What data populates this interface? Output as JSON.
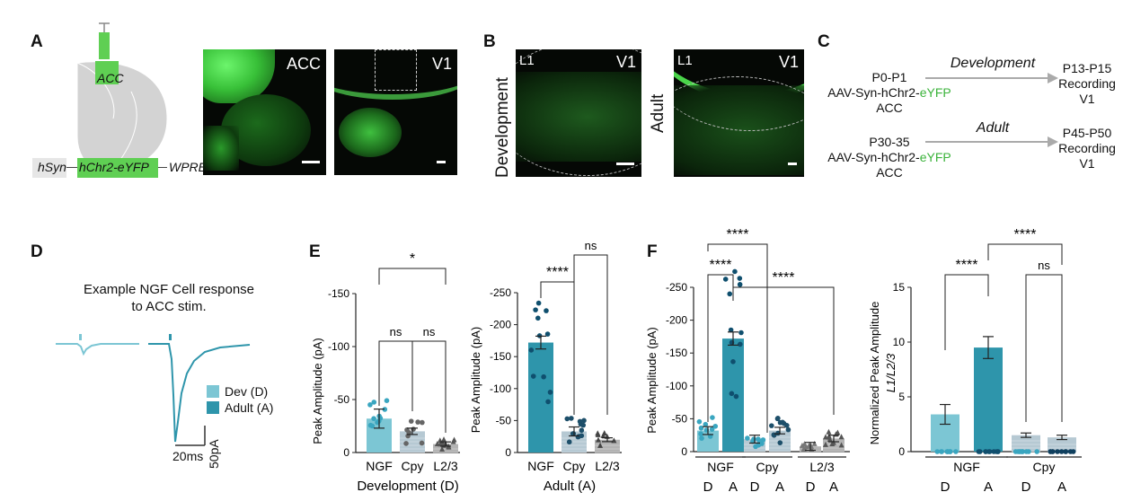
{
  "panels": {
    "A": {
      "letter": "A",
      "brain_label": "ACC",
      "construct": [
        "hSyn",
        "hChr2-eYFP",
        "WPRE"
      ],
      "images": [
        "ACC",
        "V1"
      ]
    },
    "B": {
      "letter": "B",
      "images": [
        {
          "side": "Development",
          "region": "V1",
          "layer": "L1"
        },
        {
          "side": "Adult",
          "region": "V1",
          "layer": "L1"
        }
      ]
    },
    "C": {
      "letter": "C",
      "rows": [
        {
          "condition": "Development",
          "injection_age": "P0-P1",
          "virus_prefix": "AAV-Syn-hChr2-",
          "virus_suffix": "eYFP",
          "site": "ACC",
          "record_age": "P13-P15",
          "record_label": "Recording",
          "record_site": "V1"
        },
        {
          "condition": "Adult",
          "injection_age": "P30-35",
          "virus_prefix": "AAV-Syn-hChr2-",
          "virus_suffix": "eYFP",
          "site": "ACC",
          "record_age": "P45-P50",
          "record_label": "Recording",
          "record_site": "V1"
        }
      ]
    },
    "D": {
      "letter": "D",
      "title_line1": "Example NGF Cell response",
      "title_line2": "to ACC stim.",
      "legend": [
        {
          "label": "Dev (D)",
          "color": "#7cc6d4"
        },
        {
          "label": "Adult (A)",
          "color": "#2e95ab"
        }
      ],
      "scale_time": "20ms",
      "scale_amp": "50pA"
    },
    "E": {
      "letter": "E"
    },
    "F": {
      "letter": "F"
    }
  },
  "colors": {
    "dev": "#7cc6d4",
    "adult": "#2e95ab",
    "dev_dot": "#3aa6c0",
    "adult_dot": "#0f4f6e",
    "cpy_bar": "#b6c9d3",
    "l23_bar": "#b3b3b3",
    "gfp": "#3fdc3f"
  },
  "chart_data": [
    {
      "type": "bar",
      "panel": "E-left",
      "categories": [
        "NGF",
        "Cpy",
        "L2/3"
      ],
      "values": [
        -32,
        -20,
        -8
      ],
      "errors": [
        9,
        3,
        2
      ],
      "ylabel": "Peak  Amplitude (pA)",
      "xlabel": "Development (D)",
      "ylim": [
        0,
        -150
      ],
      "yticks": [
        "-150",
        "-100",
        "-50",
        "0"
      ],
      "significance": [
        {
          "pair": [
            "NGF",
            "Cpy"
          ],
          "label": "ns"
        },
        {
          "pair": [
            "Cpy",
            "L2/3"
          ],
          "label": "ns"
        },
        {
          "pair": [
            "NGF",
            "L2/3"
          ],
          "label": "*"
        }
      ]
    },
    {
      "type": "bar",
      "panel": "E-right",
      "categories": [
        "NGF",
        "Cpy",
        "L2/3"
      ],
      "values": [
        -172,
        -33,
        -20
      ],
      "errors": [
        10,
        7,
        3
      ],
      "ylabel": "Peak  Amplitude (pA)",
      "xlabel": "Adult (A)",
      "ylim": [
        0,
        -250
      ],
      "yticks": [
        "-250",
        "-200",
        "-150",
        "-100",
        "-50",
        "0"
      ],
      "significance": [
        {
          "pair": [
            "NGF",
            "Cpy"
          ],
          "label": "****"
        },
        {
          "pair": [
            "Cpy",
            "L2/3"
          ],
          "label": "ns"
        }
      ]
    },
    {
      "type": "bar",
      "panel": "F-left",
      "categories": [
        "NGF",
        "Cpy",
        "L2/3"
      ],
      "sublabels": [
        "D",
        "A"
      ],
      "series": [
        {
          "name": "D",
          "values": [
            -32,
            -19,
            -8
          ]
        },
        {
          "name": "A",
          "values": [
            -172,
            -32,
            -20
          ]
        }
      ],
      "ylabel": "Peak  Amplitude (pA)",
      "ylim": [
        0,
        -250
      ],
      "yticks": [
        "-250",
        "-200",
        "-150",
        "-100",
        "-50",
        "0"
      ],
      "significance": [
        {
          "label": "****",
          "note": "NGF D vs A"
        },
        {
          "label": "****",
          "note": "NGF D vs Cpy"
        },
        {
          "label": "****",
          "note": "NGF A vs L2/3"
        }
      ]
    },
    {
      "type": "bar",
      "panel": "F-right",
      "categories": [
        "NGF",
        "Cpy"
      ],
      "sublabels": [
        "D",
        "A"
      ],
      "series": [
        {
          "name": "D",
          "values": [
            3.4,
            1.5
          ]
        },
        {
          "name": "A",
          "values": [
            9.5,
            1.3
          ]
        }
      ],
      "ylabel": "Normalized Peak Amplitude",
      "ylabel2": "L1/L2/3",
      "ylim": [
        0,
        15
      ],
      "yticks": [
        "15",
        "10",
        "5",
        "0"
      ],
      "significance": [
        {
          "pair": [
            "NGF D",
            "NGF A"
          ],
          "label": "****"
        },
        {
          "pair": [
            "Cpy D",
            "Cpy A"
          ],
          "label": "ns"
        },
        {
          "pair": [
            "NGF A",
            "Cpy A"
          ],
          "label": "****"
        }
      ]
    }
  ]
}
